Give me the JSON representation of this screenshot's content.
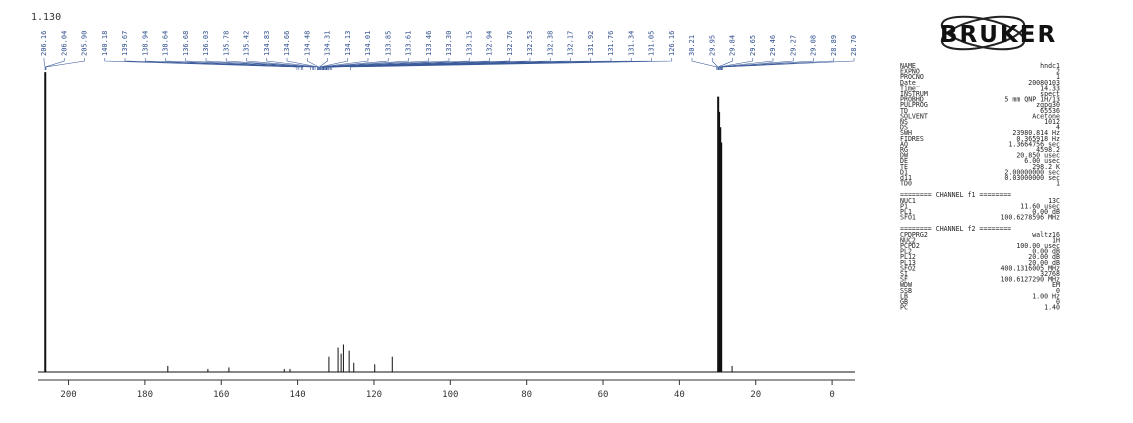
{
  "corner_label": "1.130",
  "brand": "BRUKER",
  "chart_data": {
    "type": "line",
    "title": "",
    "xlabel": "",
    "ylabel": "",
    "x_unit": "ppm",
    "xlim": [
      208,
      -6
    ],
    "x_reversed": true,
    "ylim": [
      0,
      1
    ],
    "grid": false,
    "legend": "none",
    "x_ticks": [
      200,
      180,
      160,
      140,
      120,
      100,
      80,
      60,
      40,
      20,
      0
    ],
    "x_tick_labels": [
      "200",
      "180",
      "160",
      "140",
      "120",
      "100",
      "80",
      "60",
      "40",
      "20",
      "0"
    ],
    "peak_labels": [
      "206.16",
      "206.04",
      "205.90",
      "140.18",
      "139.67",
      "138.94",
      "138.64",
      "136.68",
      "136.03",
      "135.78",
      "135.42",
      "134.83",
      "134.66",
      "134.48",
      "134.31",
      "134.13",
      "134.01",
      "133.85",
      "133.61",
      "133.46",
      "133.30",
      "133.15",
      "132.94",
      "132.76",
      "132.53",
      "132.38",
      "132.17",
      "131.92",
      "131.76",
      "131.34",
      "131.05",
      "126.16",
      "30.21",
      "29.95",
      "29.84",
      "29.65",
      "29.46",
      "29.27",
      "29.08",
      "28.89",
      "28.70"
    ],
    "series": [
      {
        "peaks": [
          {
            "x": 206.1,
            "h": 0.98
          },
          {
            "x": 174.0,
            "h": 0.02
          },
          {
            "x": 163.5,
            "h": 0.01
          },
          {
            "x": 158.0,
            "h": 0.015
          },
          {
            "x": 143.5,
            "h": 0.01
          },
          {
            "x": 142.0,
            "h": 0.01
          },
          {
            "x": 131.8,
            "h": 0.05
          },
          {
            "x": 129.4,
            "h": 0.08
          },
          {
            "x": 128.6,
            "h": 0.06
          },
          {
            "x": 128.0,
            "h": 0.09
          },
          {
            "x": 126.5,
            "h": 0.07
          },
          {
            "x": 125.3,
            "h": 0.03
          },
          {
            "x": 119.8,
            "h": 0.025
          },
          {
            "x": 115.2,
            "h": 0.05
          },
          {
            "x": 29.84,
            "h": 0.9
          },
          {
            "x": 29.6,
            "h": 0.85
          },
          {
            "x": 29.3,
            "h": 0.8
          },
          {
            "x": 29.05,
            "h": 0.75
          },
          {
            "x": 26.2,
            "h": 0.02
          }
        ]
      }
    ]
  },
  "params": {
    "group1": [
      {
        "key": "NAME",
        "value": "hndc1"
      },
      {
        "key": "EXPNO",
        "value": "2"
      },
      {
        "key": "PROCNO",
        "value": "1"
      },
      {
        "key": "Date_",
        "value": "20080103"
      },
      {
        "key": "Time",
        "value": "14.33"
      },
      {
        "key": "INSTRUM",
        "value": "spect"
      },
      {
        "key": "PROBHD",
        "value": "5 mm QNP 1H/13"
      },
      {
        "key": "PULPROG",
        "value": "zgpg30"
      },
      {
        "key": "TD",
        "value": "65536"
      },
      {
        "key": "SOLVENT",
        "value": "Acetone"
      },
      {
        "key": "NS",
        "value": "1012"
      },
      {
        "key": "DS",
        "value": "4"
      },
      {
        "key": "SWH",
        "value": "23980.814 Hz"
      },
      {
        "key": "FIDRES",
        "value": "0.365918 Hz"
      },
      {
        "key": "AQ",
        "value": "1.3664756 sec"
      },
      {
        "key": "RG",
        "value": "4598.2"
      },
      {
        "key": "DW",
        "value": "20.850 usec"
      },
      {
        "key": "DE",
        "value": "6.00 usec"
      },
      {
        "key": "TE",
        "value": "298.2 K"
      },
      {
        "key": "D1",
        "value": "2.00000000 sec"
      },
      {
        "key": "d11",
        "value": "0.03000000 sec"
      },
      {
        "key": "TD0",
        "value": "1"
      }
    ],
    "channel1_title": "======== CHANNEL f1 ========",
    "group2": [
      {
        "key": "NUC1",
        "value": "13C"
      },
      {
        "key": "P1",
        "value": "11.60 usec"
      },
      {
        "key": "PL1",
        "value": "0.00 dB"
      },
      {
        "key": "SFO1",
        "value": "100.6278596 MHz"
      }
    ],
    "channel2_title": "======== CHANNEL f2 ========",
    "group3": [
      {
        "key": "CPDPRG2",
        "value": "waltz16"
      },
      {
        "key": "NUC2",
        "value": "1H"
      },
      {
        "key": "PCPD2",
        "value": "100.00 usec"
      },
      {
        "key": "PL2",
        "value": "0.00 dB"
      },
      {
        "key": "PL12",
        "value": "20.00 dB"
      },
      {
        "key": "PL13",
        "value": "20.00 dB"
      },
      {
        "key": "SFO2",
        "value": "400.1316005 MHz"
      },
      {
        "key": "SI",
        "value": "32768"
      },
      {
        "key": "SF",
        "value": "100.6127290 MHz"
      },
      {
        "key": "WDW",
        "value": "EM"
      },
      {
        "key": "SSB",
        "value": "0"
      },
      {
        "key": "LB",
        "value": "1.00 Hz"
      },
      {
        "key": "GB",
        "value": "0"
      },
      {
        "key": "PC",
        "value": "1.40"
      }
    ]
  }
}
